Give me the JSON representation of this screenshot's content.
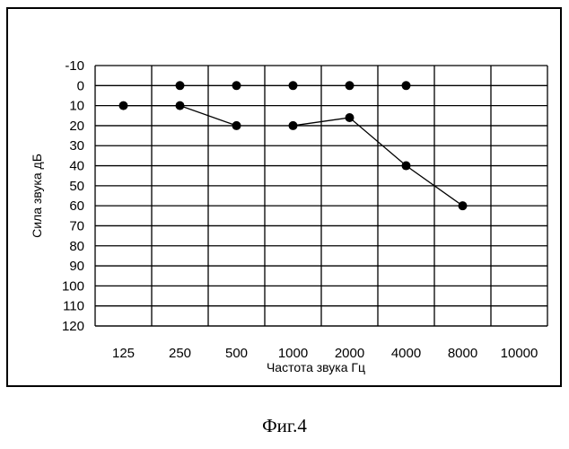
{
  "chart_data": {
    "type": "line",
    "title": "",
    "xlabel": "Частота звука  Гц",
    "ylabel": "Сила звука  дБ",
    "categories": [
      "125",
      "250",
      "500",
      "1000",
      "2000",
      "4000",
      "8000",
      "10000"
    ],
    "y_ticks": [
      "-10",
      "0",
      "10",
      "20",
      "30",
      "40",
      "50",
      "60",
      "70",
      "80",
      "90",
      "100",
      "110",
      "120"
    ],
    "ylim": [
      -10,
      120
    ],
    "y_inverted": true,
    "grid": true,
    "legend": "none",
    "series": [
      {
        "x": [
          "250",
          "500",
          "1000",
          "2000",
          "4000"
        ],
        "values": [
          0,
          0,
          0,
          0,
          0
        ],
        "connected": false
      },
      {
        "x": [
          "125",
          "250",
          "500"
        ],
        "values": [
          10,
          10,
          20
        ],
        "connected": true
      },
      {
        "x": [
          "1000",
          "2000",
          "4000",
          "8000"
        ],
        "values": [
          20,
          16,
          40,
          60
        ],
        "connected": true
      }
    ]
  },
  "caption": "Фиг.4"
}
